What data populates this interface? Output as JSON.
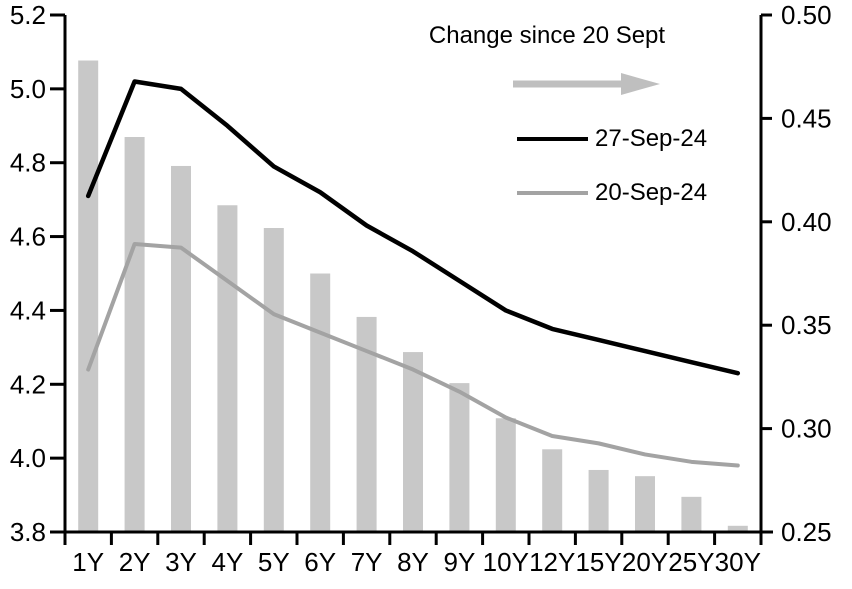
{
  "chart_data": {
    "type": "combo-bar-line",
    "title": "",
    "categories": [
      "1Y",
      "2Y",
      "3Y",
      "4Y",
      "5Y",
      "6Y",
      "7Y",
      "8Y",
      "9Y",
      "10Y",
      "12Y",
      "15Y",
      "20Y",
      "25Y",
      "30Y"
    ],
    "series": [
      {
        "name": "Change since 20 Sept",
        "type": "bar",
        "axis": "right",
        "color": "#c8c8c8",
        "values": [
          0.478,
          0.441,
          0.427,
          0.408,
          0.397,
          0.375,
          0.354,
          0.337,
          0.322,
          0.305,
          0.29,
          0.28,
          0.277,
          0.267,
          0.253
        ]
      },
      {
        "name": "27-Sep-24",
        "type": "line",
        "axis": "left",
        "color": "#000000",
        "values": [
          4.71,
          5.02,
          5.0,
          4.9,
          4.79,
          4.72,
          4.63,
          4.56,
          4.48,
          4.4,
          4.35,
          4.32,
          4.29,
          4.26,
          4.23
        ]
      },
      {
        "name": "20-Sep-24",
        "type": "line",
        "axis": "left",
        "color": "#a3a3a3",
        "values": [
          4.24,
          4.58,
          4.57,
          4.48,
          4.39,
          4.34,
          4.29,
          4.24,
          4.18,
          4.11,
          4.06,
          4.04,
          4.01,
          3.99,
          3.98
        ]
      }
    ],
    "left_axis": {
      "min": 3.8,
      "max": 5.2,
      "tick_step": 0.2,
      "ticks": [
        3.8,
        4.0,
        4.2,
        4.4,
        4.6,
        4.8,
        5.0,
        5.2
      ],
      "tick_labels": [
        "3.8",
        "4.0",
        "4.2",
        "4.4",
        "4.6",
        "4.8",
        "5.0",
        "5.2"
      ]
    },
    "right_axis": {
      "min": 0.25,
      "max": 0.5,
      "tick_step": 0.05,
      "ticks": [
        0.25,
        0.3,
        0.35,
        0.4,
        0.45,
        0.5
      ],
      "tick_labels": [
        "0.25",
        "0.30",
        "0.35",
        "0.40",
        "0.45",
        "0.50"
      ]
    },
    "legend": {
      "title": "Change since 20 Sept",
      "arrow_icon": "right-arrow-icon",
      "arrow_color": "#bfbfbf",
      "position": "top-center-inside"
    },
    "grid": false
  }
}
